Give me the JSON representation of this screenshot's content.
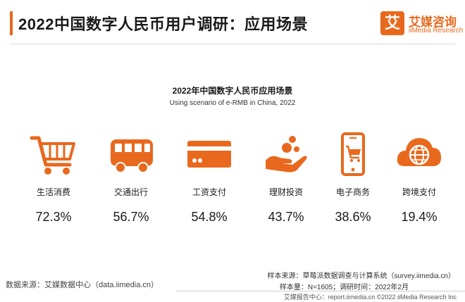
{
  "header": {
    "title": "2022中国数字人民币用户调研：应用场景",
    "brand_logo_char": "艾",
    "brand_name": "艾媒咨询",
    "brand_en": "iiMedia Research"
  },
  "chart_data": {
    "type": "table",
    "title": "2022年中国数字人民币应用场景",
    "subtitle": "Using scenario of e-RMB in China, 2022",
    "categories": [
      "生活消费",
      "交通出行",
      "工资支付",
      "理财投资",
      "电子商务",
      "跨境支付"
    ],
    "values": [
      72.3,
      56.7,
      54.8,
      43.7,
      38.6,
      19.4
    ],
    "value_labels": [
      "72.3%",
      "56.7%",
      "54.8%",
      "43.7%",
      "38.6%",
      "19.4%"
    ],
    "icons": [
      "shopping-cart-icon",
      "bus-icon",
      "credit-card-icon",
      "hand-coins-icon",
      "mobile-shop-icon",
      "globe-cloud-icon"
    ]
  },
  "colors": {
    "accent": "#e8691e",
    "text": "#1a1a1a"
  },
  "footer": {
    "source": "数据来源：艾媒数据中心（data.iimedia.cn）",
    "sample_source": "样本来源：草莓派数据调查与计算系统（survey.iimedia.cn）",
    "sample_size": "样本量：N=1605；调研时间：2022年2月",
    "copyright": "艾媒报告中心：report.iimedia.cn  ©2022 iiMedia Research Inc"
  }
}
